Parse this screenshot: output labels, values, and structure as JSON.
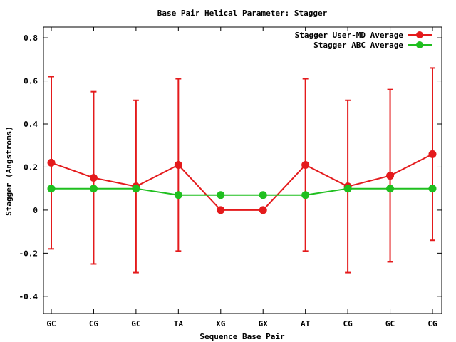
{
  "chart_data": {
    "type": "line",
    "title": "Base Pair Helical Parameter: Stagger",
    "xlabel": "Sequence Base Pair",
    "ylabel": "Stagger (Angstroms)",
    "ylim": [
      -0.48,
      0.85
    ],
    "yticks": [
      -0.4,
      -0.2,
      0,
      0.2,
      0.4,
      0.6,
      0.8
    ],
    "ytick_labels": [
      "-0.4",
      "-0.2",
      "0",
      "0.2",
      "0.4",
      "0.6",
      "0.8"
    ],
    "categories": [
      "GC",
      "CG",
      "GC",
      "TA",
      "XG",
      "GX",
      "AT",
      "CG",
      "GC",
      "CG"
    ],
    "grid": false,
    "legend_position": "top-right",
    "series": [
      {
        "name": "Stagger User-MD Average",
        "color": "#e41a1c",
        "values": [
          0.22,
          0.15,
          0.11,
          0.21,
          0.0,
          0.0,
          0.21,
          0.11,
          0.16,
          0.26
        ],
        "error_low": [
          -0.18,
          -0.25,
          -0.29,
          -0.19,
          null,
          null,
          -0.19,
          -0.29,
          -0.24,
          -0.14
        ],
        "error_high": [
          0.62,
          0.55,
          0.51,
          0.61,
          null,
          null,
          0.61,
          0.51,
          0.56,
          0.66
        ]
      },
      {
        "name": "Stagger ABC Average",
        "color": "#1fbf1f",
        "values": [
          0.1,
          0.1,
          0.1,
          0.07,
          0.07,
          0.07,
          0.07,
          0.1,
          0.1,
          0.1
        ]
      }
    ]
  }
}
